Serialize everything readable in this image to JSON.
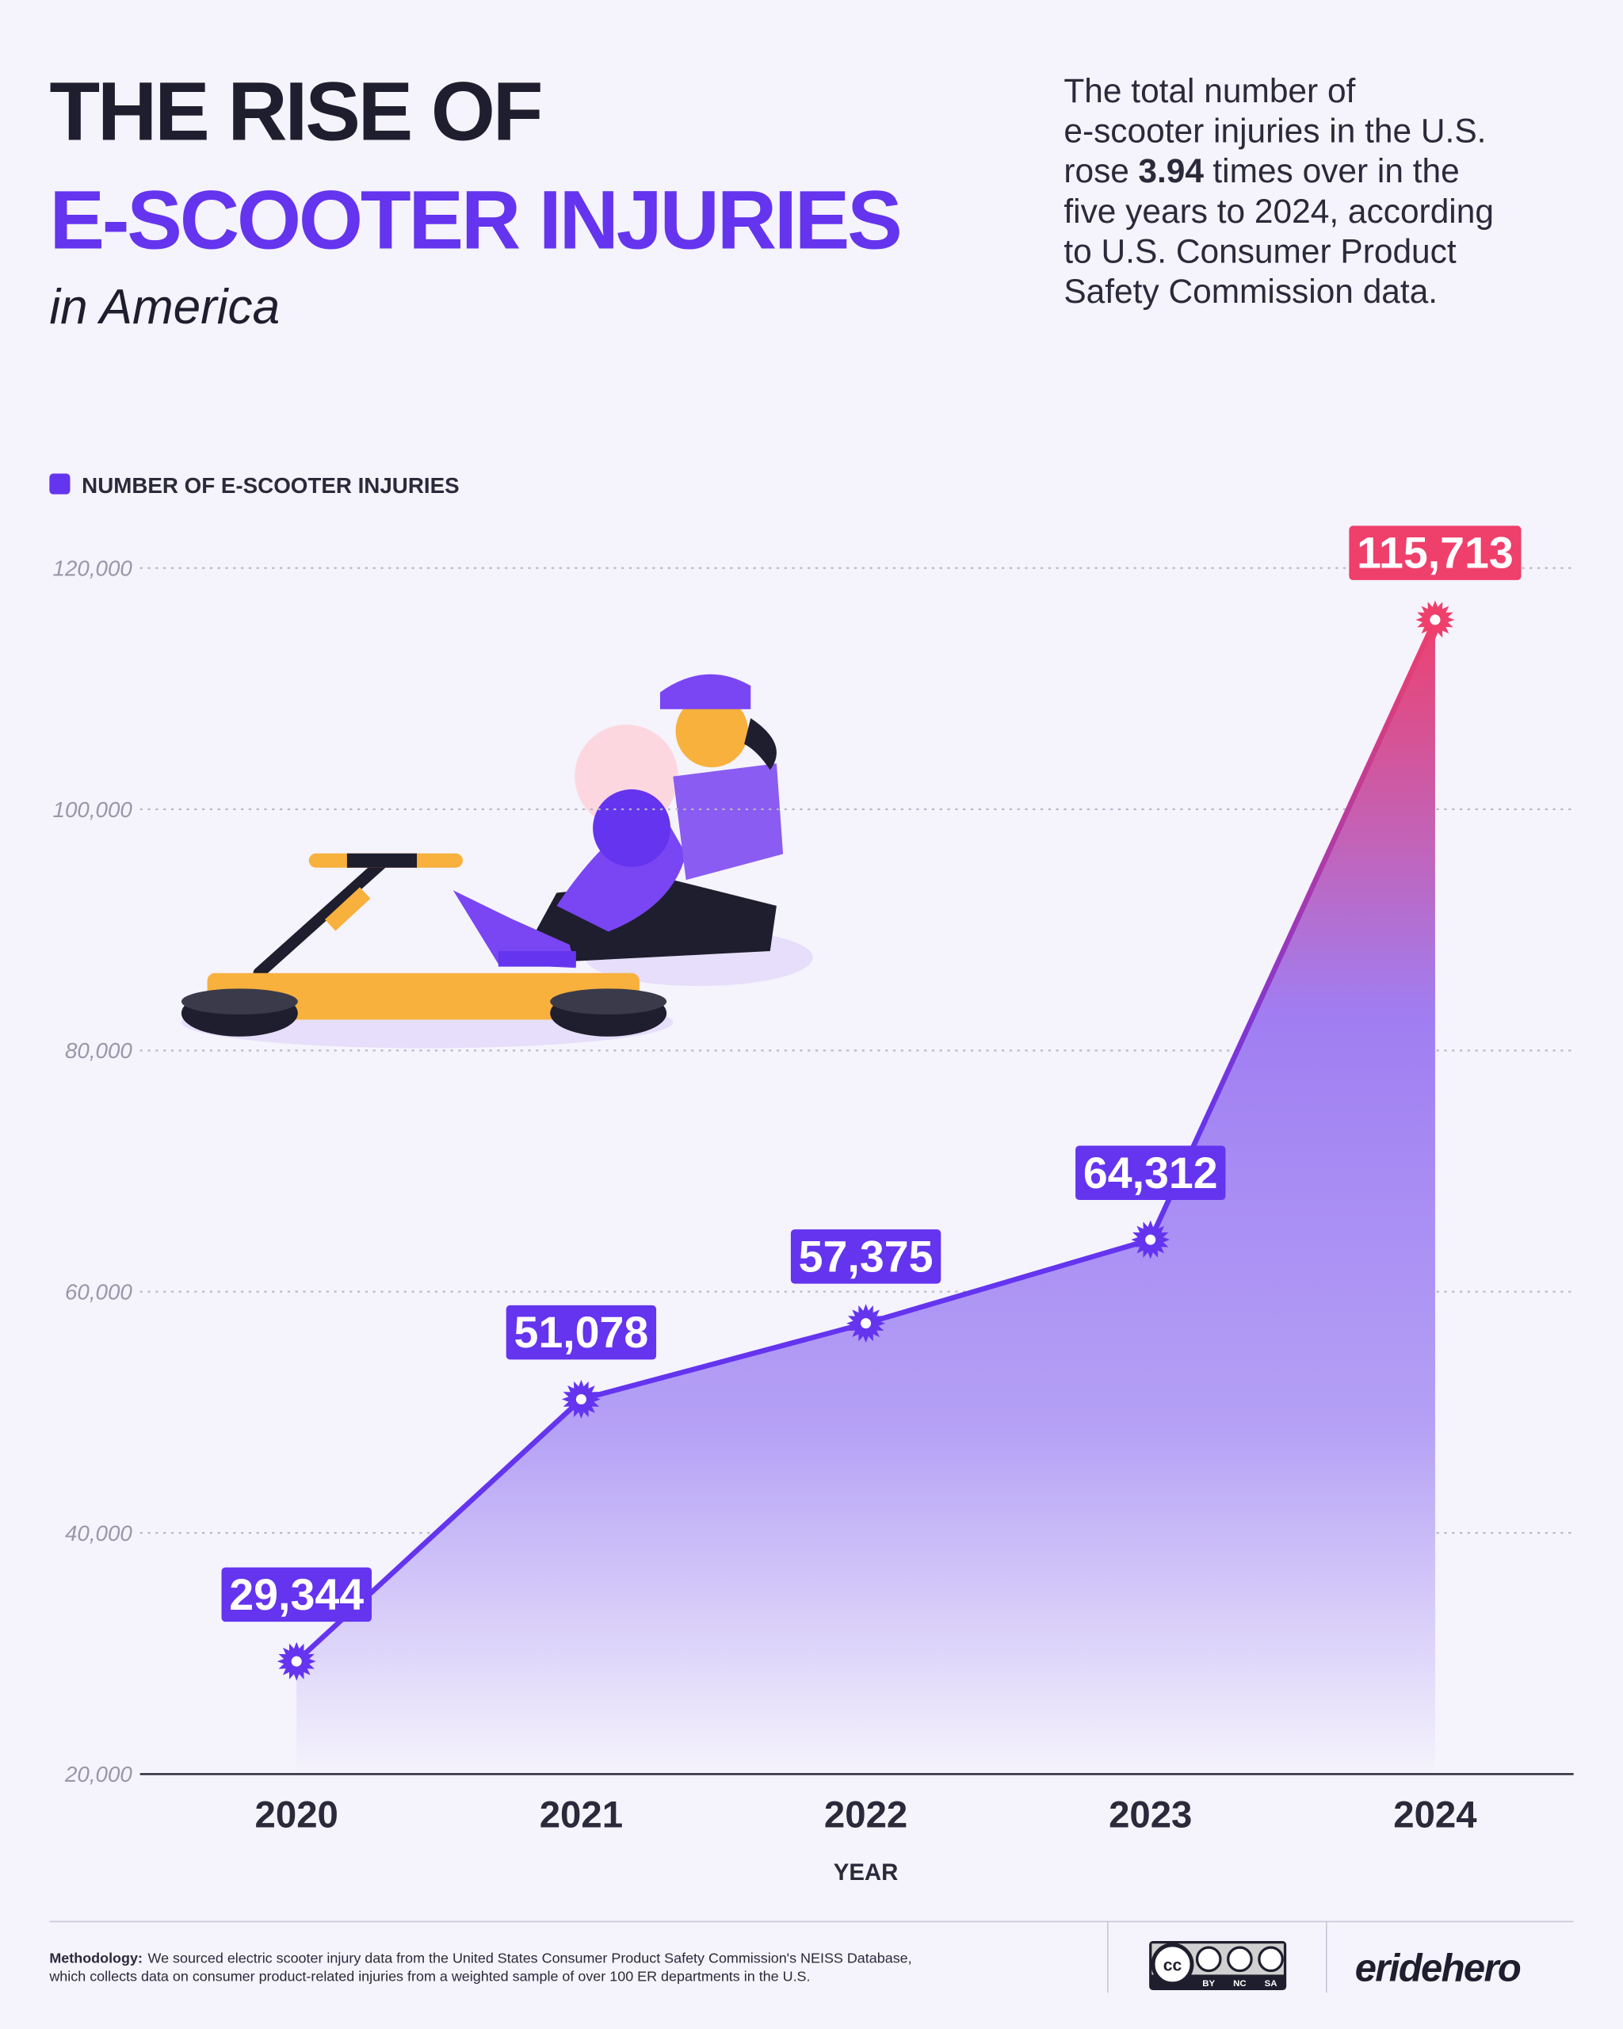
{
  "header": {
    "title_line1": "THE RISE OF",
    "title_line2": "E-SCOOTER INJURIES",
    "subtitle": "in America",
    "description": [
      "The total number of",
      "e-scooter injuries in the U.S.",
      "rose",
      "3.94",
      "times over in the",
      "five years to 2024, according",
      "to U.S. Consumer Product",
      "Safety Commission data."
    ]
  },
  "chart_data": {
    "type": "line",
    "fill_area": true,
    "x_label": "YEAR",
    "categories": [
      "2020",
      "2021",
      "2022",
      "2023",
      "2024"
    ],
    "series": [
      {
        "name": "NUMBER OF E-SCOOTER INJURIES",
        "color": "#6434ef",
        "highlight_color": "#ef3f6b",
        "values": [
          29344,
          51078,
          57375,
          64312,
          115713
        ],
        "value_labels": [
          "29,344",
          "51,078",
          "57,375",
          "64,312",
          "115,713"
        ]
      }
    ],
    "ylim": [
      20000,
      120000
    ],
    "yticks": [
      {
        "value": 20000,
        "label": "20,000"
      },
      {
        "value": 40000,
        "label": "40,000"
      },
      {
        "value": 60000,
        "label": "60,000"
      },
      {
        "value": 80000,
        "label": "80,000"
      },
      {
        "value": 100000,
        "label": "100,000"
      },
      {
        "value": 120000,
        "label": "120,000"
      }
    ],
    "grid": true,
    "legend": "top-left"
  },
  "footer": {
    "methodology": [
      "Methodology:",
      "We sourced electric scooter injury data from the United States Consumer Product Safety Commission's NEISS Database,",
      "which collects data on consumer product-related injuries from a weighted sample of over 100 ER departments in the U.S."
    ],
    "license": [
      "BY",
      "NC",
      "SA"
    ],
    "license_badge": "cc",
    "brand": "eridehero"
  }
}
